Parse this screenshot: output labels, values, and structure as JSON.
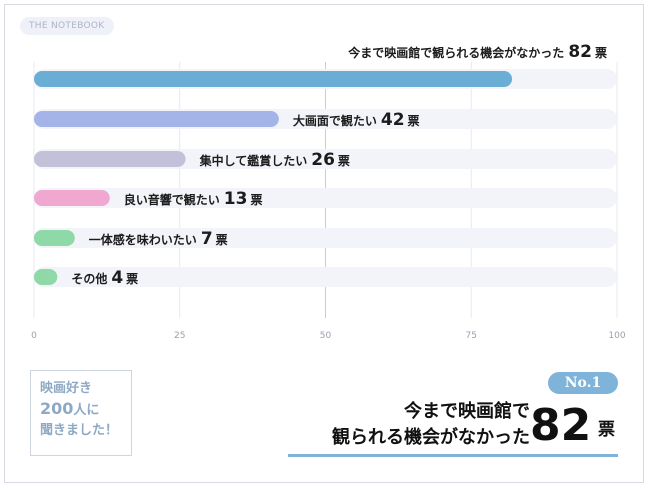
{
  "brand": "THE NOTEBOOK",
  "chart_data": {
    "type": "bar",
    "orientation": "horizontal",
    "categories": [
      "今まで映画館で観られる機会がなかった",
      "大画面で観たい",
      "集中して鑑賞したい",
      "良い音響で観たい",
      "一体感を味わいたい",
      "その他"
    ],
    "values": [
      82,
      42,
      26,
      13,
      7,
      4
    ],
    "unit": "票",
    "xlim": [
      0,
      100
    ],
    "xticks": [
      0,
      25,
      50,
      75,
      100
    ],
    "bar_colors": [
      "#6aaed6",
      "#a5b4e8",
      "#c3c1d8",
      "#f0a8d0",
      "#8fd9a8",
      "#8fd9a8"
    ],
    "grid": true
  },
  "promo": {
    "line1": "映画好き",
    "count": "200",
    "line2_suffix": "人に",
    "line3": "聞きました！"
  },
  "highlight": {
    "badge": "No.1",
    "line1": "今まで映画館で",
    "line2": "観られる機会がなかった",
    "value": "82",
    "unit": "票"
  }
}
